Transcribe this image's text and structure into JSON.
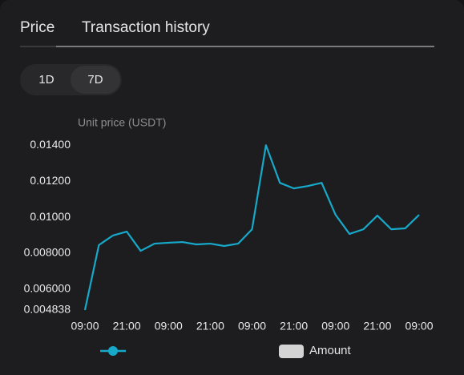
{
  "tabs": [
    "Price",
    "Transaction history"
  ],
  "range_buttons": [
    "1D",
    "7D"
  ],
  "chart_data": {
    "type": "line",
    "y_label": "Unit price (USDT)",
    "categories": [
      "09:00",
      null,
      null,
      "21:00",
      null,
      null,
      "09:00",
      null,
      null,
      "21:00",
      null,
      null,
      "09:00",
      null,
      null,
      "21:00",
      null,
      null,
      "09:00",
      null,
      null,
      "21:00",
      null,
      null,
      "09:00"
    ],
    "series": [
      {
        "color": "#17a9c9",
        "values": [
          0.004838,
          0.00845,
          0.00898,
          0.0092,
          0.00813,
          0.00853,
          0.00858,
          0.00862,
          0.00849,
          0.00853,
          0.0084,
          0.00853,
          0.00933,
          0.014,
          0.01191,
          0.0116,
          0.01173,
          0.01191,
          0.01013,
          0.00907,
          0.00933,
          0.01009,
          0.00933,
          0.00938,
          0.01013
        ]
      }
    ],
    "ylim": [
      0.004838,
      0.0145
    ],
    "yticks": [
      {
        "value": 0.004838,
        "label": "0.004838"
      },
      {
        "value": 0.006,
        "label": "0.006000"
      },
      {
        "value": 0.008,
        "label": "0.008000"
      },
      {
        "value": 0.01,
        "label": "0.01000"
      },
      {
        "value": 0.012,
        "label": "0.01200"
      },
      {
        "value": 0.014,
        "label": "0.01400"
      }
    ],
    "grid": false,
    "legend": [
      {
        "marker": "line",
        "color": "#17a9c9"
      },
      {
        "marker": "box",
        "name": "Amount",
        "color": "#d4d4d4"
      }
    ]
  }
}
